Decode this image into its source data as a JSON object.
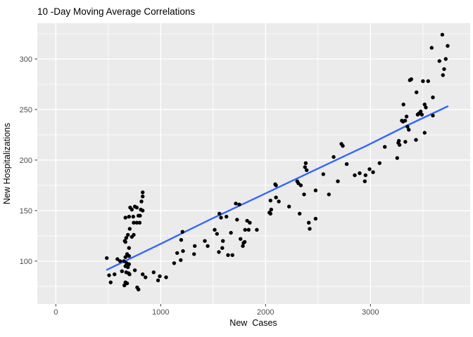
{
  "chart_data": {
    "type": "scatter",
    "title": "10 -Day Moving Average Correlations",
    "xlabel": "New  Cases",
    "ylabel": "New Hospitalizations",
    "xlim": [
      -176.5,
      3951
    ],
    "ylim": [
      57.6,
      335.4
    ],
    "grid": true,
    "legend": "none",
    "x_ticks": {
      "major": [
        0,
        1000,
        2000,
        3000
      ],
      "minor": [
        500,
        1500,
        2500,
        3500
      ],
      "labels": [
        "0",
        "1000",
        "2000",
        "3000"
      ]
    },
    "y_ticks": {
      "major": [
        100,
        150,
        200,
        250,
        300
      ],
      "minor": [
        75,
        125,
        175,
        225,
        275,
        325
      ],
      "labels": [
        "100",
        "150",
        "200",
        "250",
        "300"
      ]
    },
    "colors": {
      "page_bg": "#FFFFFF",
      "panel_bg": "#EBEBEB",
      "grid": "#FFFFFF",
      "point": "#000000",
      "smooth_line": "#3366FF",
      "tick_mark": "#333333",
      "tick_label": "#4D4D4D",
      "axis_title": "#000000"
    },
    "points": [
      [
        486,
        103
      ],
      [
        508,
        86
      ],
      [
        523,
        79
      ],
      [
        560,
        87
      ],
      [
        587,
        102
      ],
      [
        613,
        100
      ],
      [
        631,
        90
      ],
      [
        649,
        100
      ],
      [
        654,
        76
      ],
      [
        658,
        120
      ],
      [
        664,
        143
      ],
      [
        664,
        119
      ],
      [
        664,
        104
      ],
      [
        664,
        95
      ],
      [
        664,
        79
      ],
      [
        671,
        123
      ],
      [
        671,
        89
      ],
      [
        676,
        98
      ],
      [
        680,
        107
      ],
      [
        680,
        78
      ],
      [
        687,
        126
      ],
      [
        687,
        94
      ],
      [
        694,
        88
      ],
      [
        698,
        144
      ],
      [
        698,
        113
      ],
      [
        698,
        105
      ],
      [
        698,
        97
      ],
      [
        703,
        87
      ],
      [
        705,
        132
      ],
      [
        709,
        153
      ],
      [
        725,
        151
      ],
      [
        725,
        124
      ],
      [
        738,
        144
      ],
      [
        743,
        138
      ],
      [
        743,
        126
      ],
      [
        754,
        154
      ],
      [
        754,
        91
      ],
      [
        772,
        153
      ],
      [
        772,
        138
      ],
      [
        776,
        74
      ],
      [
        788,
        145
      ],
      [
        788,
        72
      ],
      [
        799,
        138
      ],
      [
        803,
        145
      ],
      [
        810,
        151
      ],
      [
        817,
        159
      ],
      [
        828,
        168
      ],
      [
        828,
        164
      ],
      [
        828,
        150
      ],
      [
        828,
        87
      ],
      [
        855,
        84
      ],
      [
        933,
        89
      ],
      [
        975,
        81
      ],
      [
        991,
        85
      ],
      [
        1052,
        84
      ],
      [
        1128,
        98
      ],
      [
        1157,
        108
      ],
      [
        1191,
        101
      ],
      [
        1195,
        121
      ],
      [
        1208,
        129
      ],
      [
        1213,
        110
      ],
      [
        1318,
        107
      ],
      [
        1325,
        115
      ],
      [
        1421,
        120
      ],
      [
        1448,
        115
      ],
      [
        1515,
        131
      ],
      [
        1537,
        127
      ],
      [
        1555,
        109
      ],
      [
        1560,
        147
      ],
      [
        1575,
        143
      ],
      [
        1587,
        113
      ],
      [
        1593,
        120
      ],
      [
        1627,
        144
      ],
      [
        1642,
        106
      ],
      [
        1670,
        128
      ],
      [
        1684,
        106
      ],
      [
        1716,
        157
      ],
      [
        1728,
        141
      ],
      [
        1750,
        156
      ],
      [
        1761,
        122
      ],
      [
        1783,
        115
      ],
      [
        1790,
        118
      ],
      [
        1801,
        119
      ],
      [
        1805,
        131
      ],
      [
        1824,
        140
      ],
      [
        1839,
        131
      ],
      [
        1850,
        138
      ],
      [
        1917,
        131
      ],
      [
        2036,
        148
      ],
      [
        2047,
        160
      ],
      [
        2047,
        147
      ],
      [
        2054,
        151
      ],
      [
        2092,
        176
      ],
      [
        2099,
        175
      ],
      [
        2099,
        163
      ],
      [
        2126,
        159
      ],
      [
        2224,
        154
      ],
      [
        2302,
        179
      ],
      [
        2313,
        177
      ],
      [
        2325,
        147
      ],
      [
        2336,
        175
      ],
      [
        2367,
        166
      ],
      [
        2376,
        193
      ],
      [
        2383,
        197
      ],
      [
        2392,
        190
      ],
      [
        2412,
        138
      ],
      [
        2421,
        132
      ],
      [
        2477,
        170
      ],
      [
        2477,
        142
      ],
      [
        2550,
        186
      ],
      [
        2604,
        166
      ],
      [
        2649,
        203
      ],
      [
        2689,
        179
      ],
      [
        2723,
        216
      ],
      [
        2736,
        214
      ],
      [
        2774,
        196
      ],
      [
        2850,
        185
      ],
      [
        2897,
        187
      ],
      [
        2946,
        179
      ],
      [
        2953,
        185
      ],
      [
        2991,
        191
      ],
      [
        3025,
        188
      ],
      [
        3087,
        197
      ],
      [
        3137,
        213
      ],
      [
        3255,
        202
      ],
      [
        3266,
        217
      ],
      [
        3271,
        219
      ],
      [
        3277,
        215
      ],
      [
        3299,
        239
      ],
      [
        3311,
        238
      ],
      [
        3315,
        255
      ],
      [
        3331,
        239
      ],
      [
        3333,
        218
      ],
      [
        3344,
        243
      ],
      [
        3353,
        233
      ],
      [
        3366,
        230
      ],
      [
        3376,
        279
      ],
      [
        3389,
        280
      ],
      [
        3434,
        220
      ],
      [
        3439,
        267
      ],
      [
        3450,
        245
      ],
      [
        3461,
        246
      ],
      [
        3479,
        248
      ],
      [
        3490,
        245
      ],
      [
        3501,
        278
      ],
      [
        3517,
        255
      ],
      [
        3517,
        227
      ],
      [
        3528,
        252
      ],
      [
        3550,
        278
      ],
      [
        3584,
        311
      ],
      [
        3595,
        262
      ],
      [
        3595,
        244
      ],
      [
        3658,
        298
      ],
      [
        3685,
        324
      ],
      [
        3691,
        284
      ],
      [
        3703,
        290
      ],
      [
        3718,
        300
      ],
      [
        3736,
        313
      ]
    ],
    "smooth_line": [
      [
        488,
        91.5
      ],
      [
        978,
        116
      ],
      [
        1481,
        141.7
      ],
      [
        1951,
        164.6
      ],
      [
        2488,
        191
      ],
      [
        2958,
        213.9
      ],
      [
        3360,
        234.7
      ],
      [
        3736,
        253.1
      ]
    ]
  }
}
